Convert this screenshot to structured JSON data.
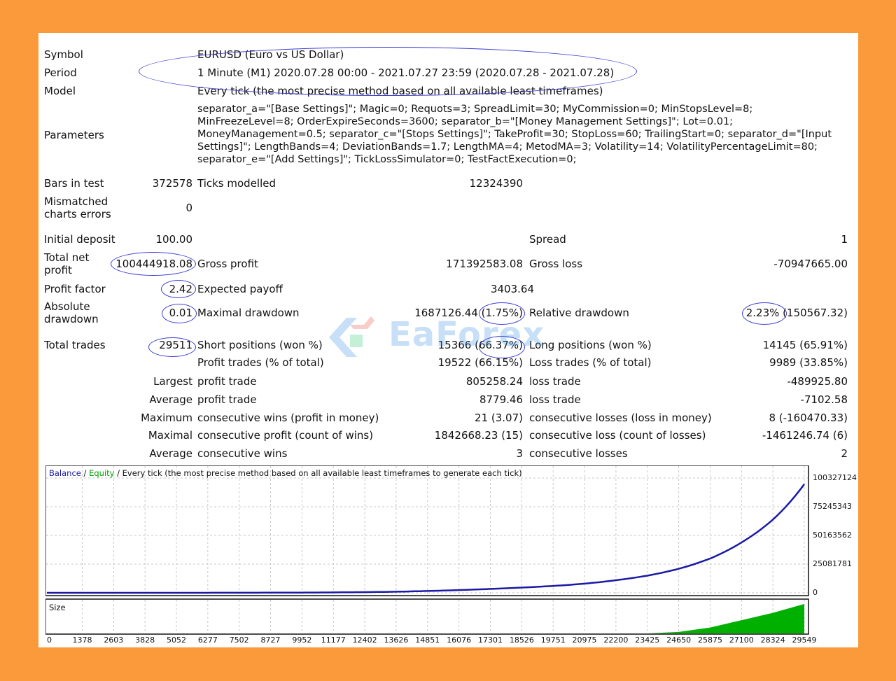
{
  "report": {
    "symbol_label": "Symbol",
    "symbol_value": "EURUSD (Euro vs US Dollar)",
    "period_label": "Period",
    "period_value": "1 Minute (M1) 2020.07.28 00:00 - 2021.07.27 23:59 (2020.07.28 - 2021.07.28)",
    "model_label": "Model",
    "model_value": "Every tick (the most precise method based on all available least timeframes)",
    "parameters_label": "Parameters",
    "parameters_value": "separator_a=\"[Base Settings]\"; Magic=0; Requots=3; SpreadLimit=30; MyCommission=0; MinStopsLevel=8; MinFreezeLevel=8; OrderExpireSeconds=3600; separator_b=\"[Money Management Settings]\"; Lot=0.01; MoneyManagement=0.5; separator_c=\"[Stops Settings]\"; TakeProfit=30; StopLoss=60; TrailingStart=0; separator_d=\"[Input Settings]\"; LengthBands=4; DeviationBands=1.7; LengthMA=4; MetodMA=3; Volatility=14; VolatilityPercentageLimit=80; separator_e=\"[Add Settings]\"; TickLossSimulator=0; TestFactExecution=0;",
    "bars_label": "Bars in test",
    "bars_value": "372578",
    "ticks_label": "Ticks modelled",
    "ticks_value": "12324390",
    "mismatched_label_1": "Mismatched",
    "mismatched_label_2": "charts errors",
    "mismatched_value": "0",
    "initial_deposit_label": "Initial deposit",
    "initial_deposit_value": "100.00",
    "spread_label": "Spread",
    "spread_value": "1",
    "total_net_label_1": "Total net",
    "total_net_label_2": "profit",
    "total_net_value": "100444918.08",
    "gross_profit_label": "Gross profit",
    "gross_profit_value": "171392583.08",
    "gross_loss_label": "Gross loss",
    "gross_loss_value": "-70947665.00",
    "profit_factor_label": "Profit factor",
    "profit_factor_value": "2.42",
    "expected_payoff_label": "Expected payoff",
    "expected_payoff_value": "3403.64",
    "absolute_dd_label_1": "Absolute",
    "absolute_dd_label_2": "drawdown",
    "absolute_dd_value": "0.01",
    "maximal_dd_label": "Maximal drawdown",
    "maximal_dd_value": "1687126.44 (1.75%)",
    "relative_dd_label": "Relative drawdown",
    "relative_dd_value": "2.23% (150567.32)",
    "total_trades_label": "Total trades",
    "total_trades_value": "29511",
    "short_label": "Short positions (won %)",
    "short_value": "15366 (66.37%)",
    "long_label": "Long positions (won %)",
    "long_value": "14145 (65.91%)",
    "profit_trades_label": "Profit trades (% of total)",
    "profit_trades_value": "19522 (66.15%)",
    "loss_trades_label": "Loss trades (% of total)",
    "loss_trades_value": "9989 (33.85%)",
    "largest_label": "Largest",
    "largest_profit_label": "profit trade",
    "largest_profit_value": "805258.24",
    "largest_loss_label": "loss trade",
    "largest_loss_value": "-489925.80",
    "average_label": "Average",
    "average_profit_label": "profit trade",
    "average_profit_value": "8779.46",
    "average_loss_label": "loss trade",
    "average_loss_value": "-7102.58",
    "maximum_label": "Maximum",
    "max_cons_wins_label": "consecutive wins (profit in money)",
    "max_cons_wins_value": "21 (3.07)",
    "max_cons_losses_label": "consecutive losses (loss in money)",
    "max_cons_losses_value": "8 (-160470.33)",
    "maximal_label": "Maximal",
    "maximal_cons_profit_label": "consecutive profit (count of wins)",
    "maximal_cons_profit_value": "1842668.23 (15)",
    "maximal_cons_loss_label": "consecutive loss (count of losses)",
    "maximal_cons_loss_value": "-1461246.74 (6)",
    "avg_cons_label": "Average",
    "avg_cons_wins_label": "consecutive wins",
    "avg_cons_wins_value": "3",
    "avg_cons_losses_label": "consecutive losses",
    "avg_cons_losses_value": "2"
  },
  "watermark": {
    "text": "EaForex"
  },
  "chart": {
    "legend_balance": "Balance",
    "legend_sep1": " / ",
    "legend_equity": "Equity",
    "legend_rest": " / Every tick (the most precise method based on all available least timeframes to generate each tick)",
    "size_label": "Size",
    "colors": {
      "balance": "#1a1aa6",
      "equity": "#00a000",
      "size": "#00b000",
      "grid": "#c8c8c8"
    }
  },
  "chart_data": {
    "type": "line",
    "title": "",
    "x": [
      0,
      1378,
      2603,
      3828,
      5052,
      6277,
      7502,
      8727,
      9952,
      11177,
      12402,
      13626,
      14851,
      16076,
      17301,
      18526,
      19751,
      20975,
      22200,
      23425,
      24650,
      25875,
      27100,
      28324,
      29549
    ],
    "xtick_labels": [
      "0",
      "1378",
      "2603",
      "3828",
      "5052",
      "6277",
      "7502",
      "8727",
      "9952",
      "11177",
      "12402",
      "13626",
      "14851",
      "16076",
      "17301",
      "18526",
      "19751",
      "20975",
      "22200",
      "23425",
      "24650",
      "25875",
      "27100",
      "28324",
      "29549"
    ],
    "ytick_labels": [
      "100327124",
      "75245343",
      "50163562",
      "25081781",
      "0"
    ],
    "ylim": [
      0,
      100327124
    ],
    "grid": true,
    "series": [
      {
        "name": "Balance",
        "values": [
          100,
          800,
          2500,
          6000,
          14000,
          30000,
          60000,
          110000,
          200000,
          350000,
          600000,
          1000000,
          1600000,
          2400000,
          3400000,
          4600000,
          6000000,
          8000000,
          11000000,
          15000000,
          21000000,
          30000000,
          44000000,
          64000000,
          95000000
        ]
      }
    ],
    "size": {
      "name": "Size",
      "values": [
        0,
        0,
        0,
        0,
        0,
        0,
        0,
        0,
        0,
        0,
        0,
        0,
        0,
        0,
        0,
        0,
        0,
        0,
        0,
        0,
        0.05,
        0.2,
        0.45,
        0.7,
        1.0
      ]
    }
  }
}
